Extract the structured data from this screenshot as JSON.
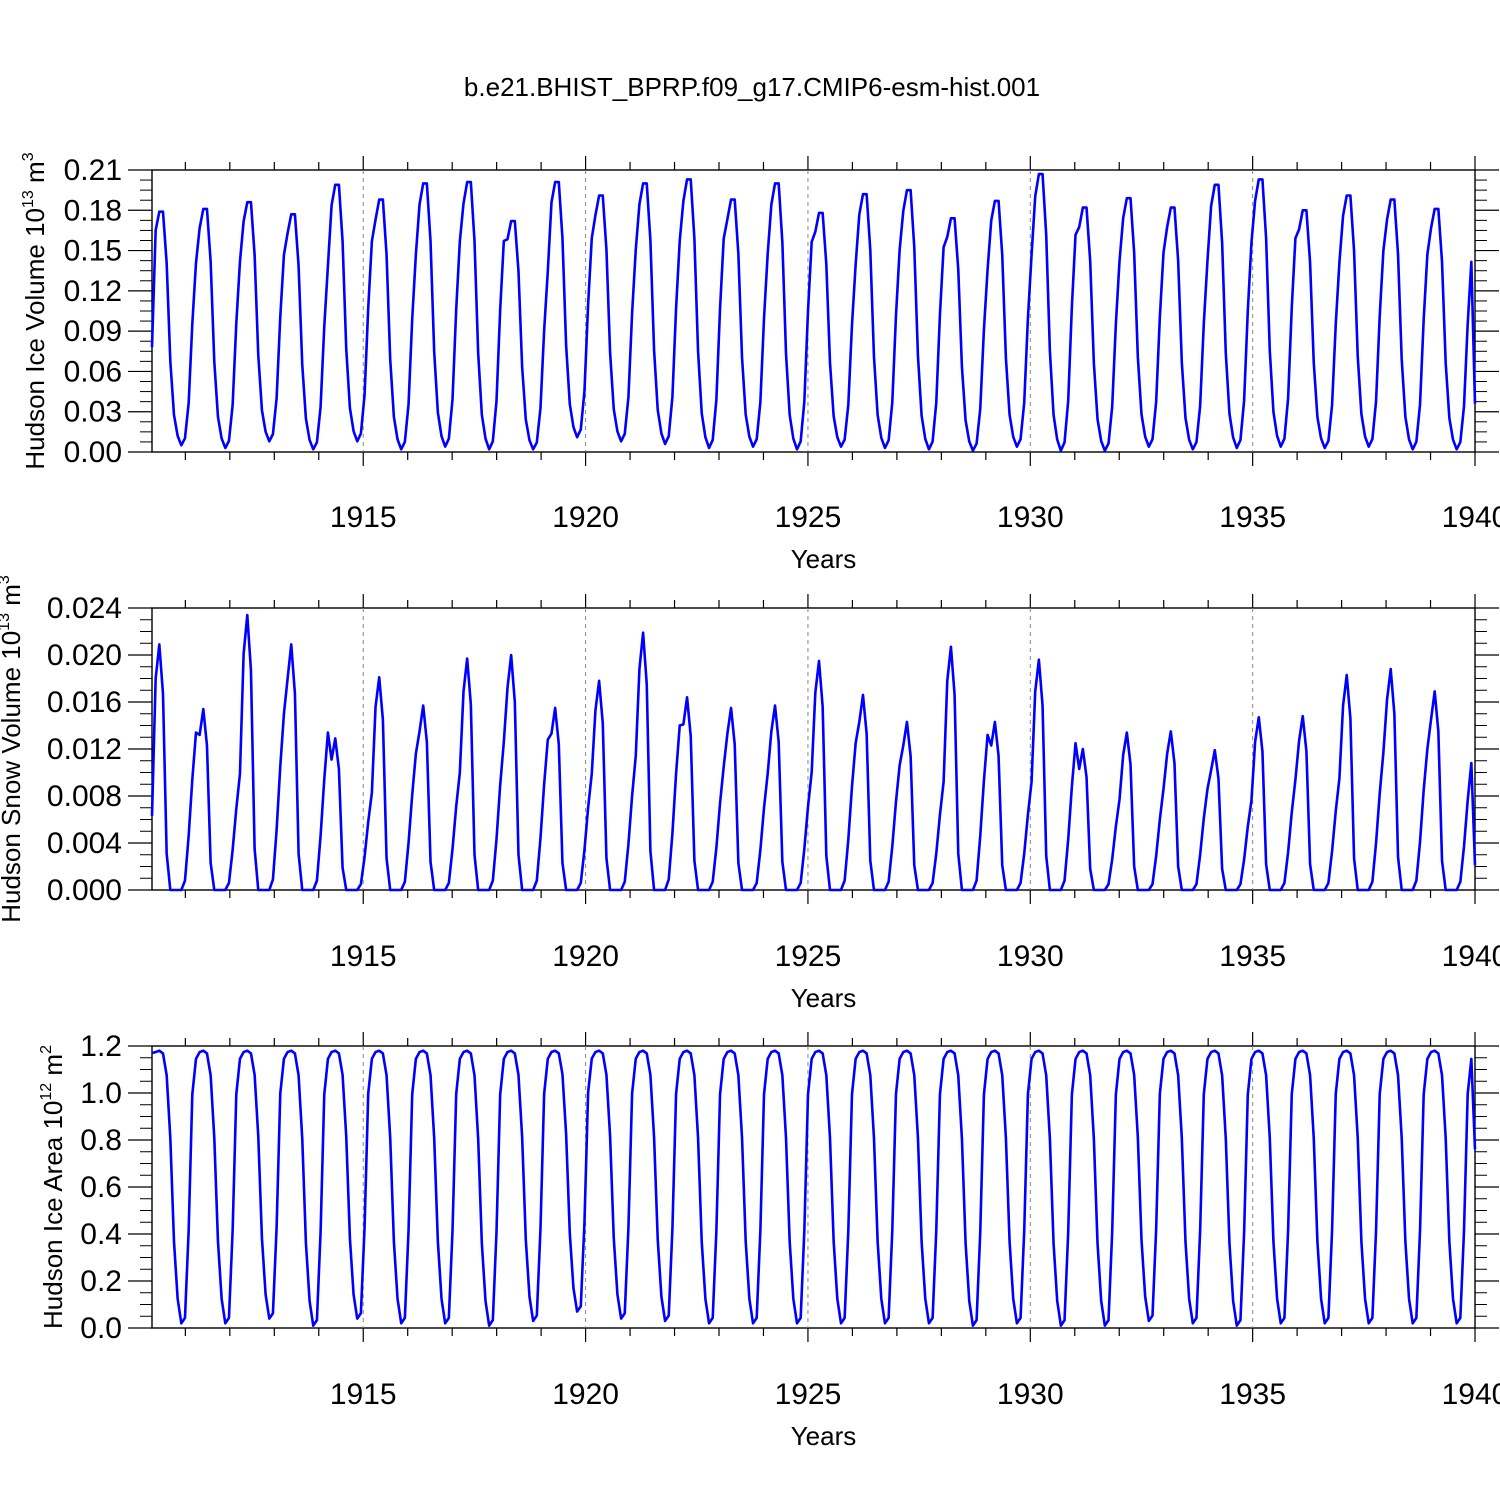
{
  "figure": {
    "title": "b.e21.BHIST_BPRP.f09_g17.CMIP6-esm-hist.001",
    "line_color": "#0000ff",
    "axis_color": "#000000",
    "gridline_color": "#888888"
  },
  "chart_data": [
    {
      "type": "line",
      "title": "",
      "ylabel_base": "Hudson Ice Volume 10",
      "ylabel_exp": "13",
      "ylabel_unit": " m",
      "ylabel_unit_exp": "3",
      "xlabel": "Years",
      "xlim": [
        1910.25,
        1940.0
      ],
      "ylim": [
        0.0,
        0.21
      ],
      "yticks": [
        0.0,
        0.03,
        0.06,
        0.09,
        0.12,
        0.15,
        0.18,
        0.21
      ],
      "ytick_labels": [
        "0.00",
        "0.03",
        "0.06",
        "0.09",
        "0.12",
        "0.15",
        "0.18",
        "0.21"
      ],
      "xticks": [
        1915,
        1920,
        1925,
        1930,
        1935,
        1940
      ],
      "xtick_labels": [
        "1915",
        "1920",
        "1925",
        "1930",
        "1935",
        "1940"
      ],
      "ref_lines_x": [
        1915,
        1920,
        1925,
        1930,
        1935
      ],
      "start_value": 0.078,
      "end_value": 0.036,
      "annual_peaks": [
        0.179,
        0.181,
        0.186,
        0.177,
        0.199,
        0.188,
        0.2,
        0.201,
        0.172,
        0.201,
        0.191,
        0.2,
        0.203,
        0.188,
        0.2,
        0.178,
        0.192,
        0.195,
        0.174,
        0.187,
        0.207,
        0.182,
        0.189,
        0.182,
        0.199,
        0.203,
        0.18,
        0.191,
        0.188,
        0.181
      ],
      "annual_minima": [
        0.005,
        0.003,
        0.008,
        0.002,
        0.008,
        0.002,
        0.004,
        0.002,
        0.002,
        0.011,
        0.008,
        0.006,
        0.003,
        0.004,
        0.002,
        0.004,
        0.003,
        0.002,
        0.001,
        0.004,
        0.001,
        0.001,
        0.004,
        0.002,
        0.003,
        0.004,
        0.003,
        0.004,
        0.002,
        0.002
      ],
      "series": [
        {
          "values": []
        }
      ]
    },
    {
      "type": "line",
      "title": "",
      "ylabel_base": "Hudson Snow Volume 10",
      "ylabel_exp": "13",
      "ylabel_unit": " m",
      "ylabel_unit_exp": "3",
      "xlabel": "Years",
      "xlim": [
        1910.25,
        1940.0
      ],
      "ylim": [
        0.0,
        0.024
      ],
      "yticks": [
        0.0,
        0.004,
        0.008,
        0.012,
        0.016,
        0.02,
        0.024
      ],
      "ytick_labels": [
        "0.000",
        "0.004",
        "0.008",
        "0.012",
        "0.016",
        "0.020",
        "0.024"
      ],
      "xticks": [
        1915,
        1920,
        1925,
        1930,
        1935,
        1940
      ],
      "xtick_labels": [
        "1915",
        "1920",
        "1925",
        "1930",
        "1935",
        "1940"
      ],
      "ref_lines_x": [
        1915,
        1920,
        1925,
        1930,
        1935
      ],
      "start_value": 0.0063,
      "end_value": 0.0021,
      "annual_peaks": [
        0.0209,
        0.0154,
        0.0234,
        0.0209,
        0.0129,
        0.0181,
        0.0157,
        0.0197,
        0.02,
        0.0155,
        0.0178,
        0.0219,
        0.0164,
        0.0155,
        0.0157,
        0.0195,
        0.0166,
        0.0143,
        0.0207,
        0.0143,
        0.0196,
        0.012,
        0.0134,
        0.0135,
        0.0119,
        0.0147,
        0.0148,
        0.0183,
        0.0188,
        0.0169
      ],
      "annual_minima": [
        0.0,
        0.0,
        0.0,
        0.0,
        0.0,
        0.0,
        0.0,
        0.0,
        0.0,
        0.0,
        0.0,
        0.0,
        0.0,
        0.0,
        0.0,
        0.0,
        0.0,
        0.0,
        0.0,
        0.0,
        0.0,
        0.0,
        0.0,
        0.0,
        0.0,
        0.0,
        0.0,
        0.0,
        0.0,
        0.0
      ],
      "series": [
        {
          "values": []
        }
      ]
    },
    {
      "type": "line",
      "title": "",
      "ylabel_base": "Hudson Ice Area 10",
      "ylabel_exp": "12",
      "ylabel_unit": " m",
      "ylabel_unit_exp": "2",
      "xlabel": "Years",
      "xlim": [
        1910.25,
        1940.0
      ],
      "ylim": [
        0.0,
        1.2
      ],
      "yticks": [
        0.0,
        0.2,
        0.4,
        0.6,
        0.8,
        1.0,
        1.2
      ],
      "ytick_labels": [
        "0.0",
        "0.2",
        "0.4",
        "0.6",
        "0.8",
        "1.0",
        "1.2"
      ],
      "xticks": [
        1915,
        1920,
        1925,
        1930,
        1935,
        1940
      ],
      "xtick_labels": [
        "1915",
        "1920",
        "1925",
        "1930",
        "1935",
        "1940"
      ],
      "ref_lines_x": [
        1915,
        1920,
        1925,
        1930,
        1935
      ],
      "start_value": 1.17,
      "end_value": 0.76,
      "annual_peaks": [
        1.18,
        1.18,
        1.18,
        1.18,
        1.18,
        1.18,
        1.18,
        1.18,
        1.18,
        1.18,
        1.18,
        1.18,
        1.18,
        1.18,
        1.18,
        1.18,
        1.18,
        1.18,
        1.18,
        1.18,
        1.18,
        1.18,
        1.18,
        1.18,
        1.18,
        1.18,
        1.18,
        1.18,
        1.18,
        1.18
      ],
      "annual_minima": [
        0.02,
        0.02,
        0.04,
        0.01,
        0.04,
        0.02,
        0.02,
        0.01,
        0.03,
        0.07,
        0.04,
        0.03,
        0.02,
        0.02,
        0.02,
        0.02,
        0.02,
        0.02,
        0.01,
        0.02,
        0.01,
        0.01,
        0.03,
        0.02,
        0.01,
        0.02,
        0.02,
        0.02,
        0.02,
        0.02
      ],
      "series": [
        {
          "values": []
        }
      ]
    }
  ]
}
